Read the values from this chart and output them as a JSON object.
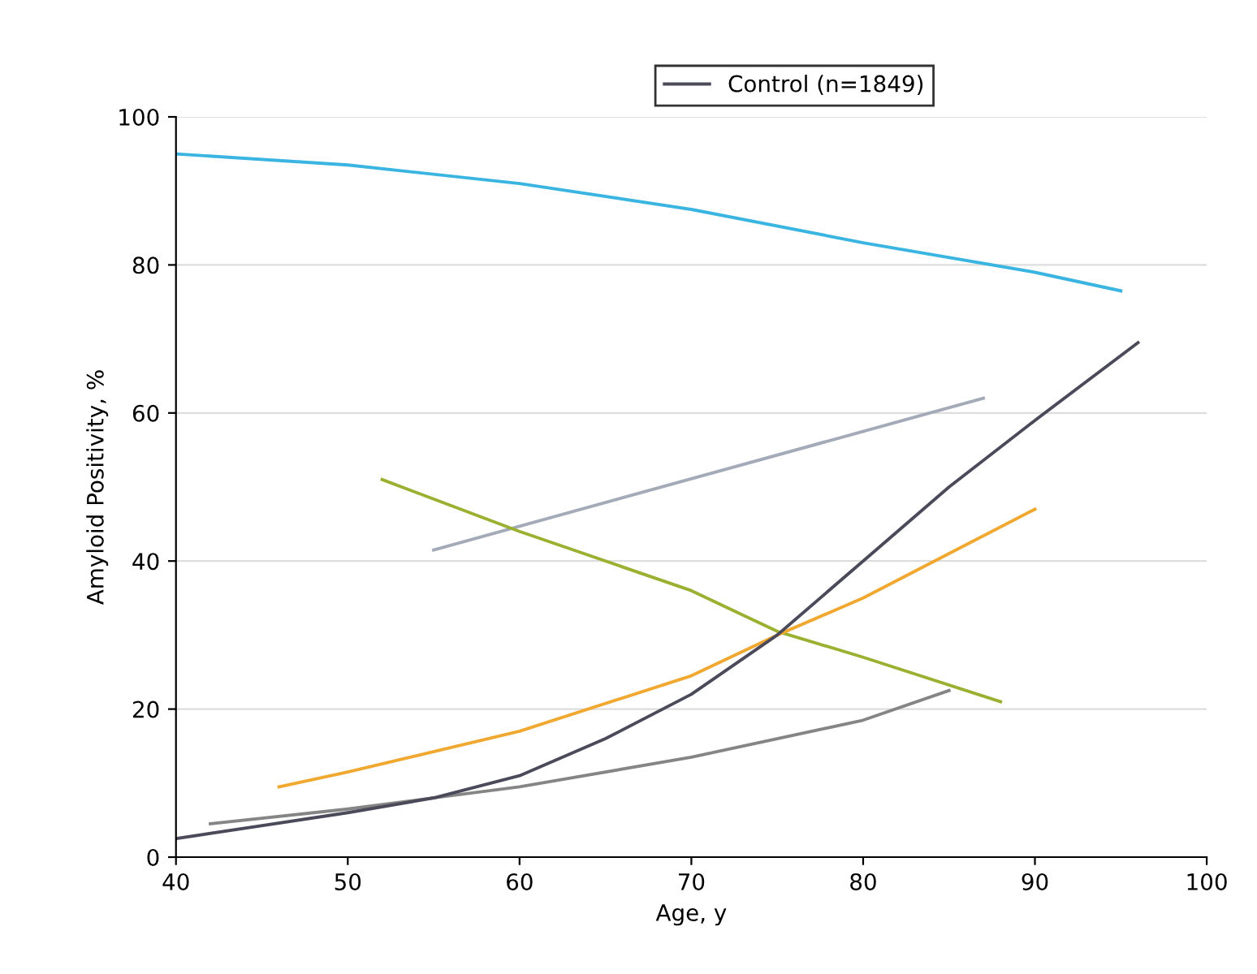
{
  "chart_data": {
    "type": "line",
    "xlabel": "Age, y",
    "ylabel": "Amyloid Positivity, %",
    "xlim": [
      40,
      100
    ],
    "xticks": [
      40,
      50,
      60,
      70,
      80,
      90,
      100
    ],
    "ylim": [
      0,
      100
    ],
    "yticks": [
      0,
      20,
      40,
      60,
      80,
      100
    ],
    "grid": "y",
    "legend": "top",
    "marker": "none",
    "line_style": "solid",
    "series": [
      {
        "color": "#3ab4e0",
        "x": [
          40,
          50,
          60,
          70,
          80,
          90,
          95
        ],
        "values": [
          95,
          93.5,
          91,
          87.5,
          83,
          79,
          76.5
        ]
      },
      {
        "color": "#a3aab8",
        "x": [
          55,
          87
        ],
        "values": [
          41.5,
          62
        ]
      },
      {
        "color": "#9ab030",
        "x": [
          52,
          60,
          70,
          75,
          80,
          88
        ],
        "values": [
          51,
          44,
          36,
          30.5,
          27,
          21
        ]
      },
      {
        "color": "#f0a830",
        "x": [
          46,
          50,
          60,
          70,
          75,
          80,
          85,
          90
        ],
        "values": [
          9.5,
          11.5,
          17,
          24.5,
          30,
          35,
          41,
          47
        ]
      },
      {
        "color": "#858585",
        "x": [
          42,
          50,
          60,
          70,
          80,
          85
        ],
        "values": [
          4.5,
          6.5,
          9.5,
          13.5,
          18.5,
          22.5
        ]
      },
      {
        "name": "Control (n=1849)",
        "color": "#4a4a5a",
        "x": [
          40,
          50,
          55,
          60,
          65,
          70,
          75,
          80,
          85,
          90,
          96
        ],
        "values": [
          2.5,
          6,
          8,
          11,
          16,
          22,
          30,
          40,
          50,
          59,
          69.5
        ]
      }
    ]
  }
}
